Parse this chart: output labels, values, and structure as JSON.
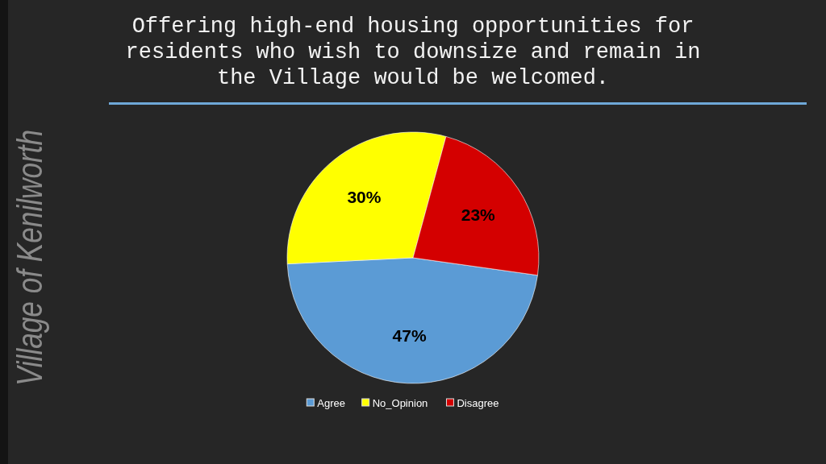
{
  "chart_data": {
    "type": "pie",
    "title": "Offering high-end housing opportunities for residents who wish to downsize and remain in the Village would be welcomed.",
    "annotations": [
      "Village of Kenilworth"
    ],
    "categories": [
      "Agree",
      "No_Opinion",
      "Disagree"
    ],
    "values": [
      47,
      30,
      23
    ],
    "colors": [
      "#5b9bd5",
      "#ffff00",
      "#d40000"
    ],
    "value_labels": [
      "47%",
      "30%",
      "23%"
    ],
    "legend": "bottom"
  }
}
